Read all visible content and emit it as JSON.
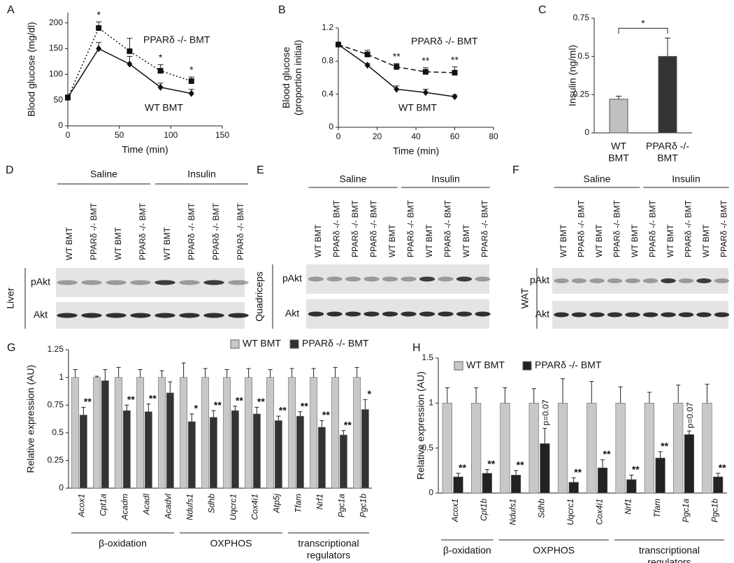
{
  "chart_data": [
    {
      "type": "line",
      "panel": "A",
      "x_label": "Time (min)",
      "y_label": [
        "Blood glucose (mg/dl)"
      ],
      "x": [
        0,
        30,
        60,
        90,
        120
      ],
      "xlim": [
        0,
        150
      ],
      "xticks": [
        0,
        50,
        100,
        150
      ],
      "ylim": [
        0,
        220
      ],
      "yticks": [
        0,
        50,
        100,
        150,
        200
      ],
      "series": [
        {
          "name": "WT BMT",
          "color": "#111111",
          "line_style": "solid",
          "marker": "diamond",
          "values": [
            55,
            150,
            120,
            75,
            63
          ],
          "errors": [
            5,
            12,
            15,
            8,
            8
          ]
        },
        {
          "name": "PPARδ -/- BMT",
          "color": "#111111",
          "line_style": "dotted",
          "marker": "square",
          "values": [
            55,
            190,
            145,
            107,
            87
          ],
          "errors": [
            5,
            12,
            25,
            12,
            8
          ]
        }
      ],
      "annotations": [
        null,
        "*",
        null,
        "*",
        "*"
      ]
    },
    {
      "type": "line",
      "panel": "B",
      "x_label": "Time (min)",
      "y_label": [
        "Blood glucose",
        "(proportion initial)"
      ],
      "x": [
        0,
        15,
        30,
        45,
        60
      ],
      "xlim": [
        0,
        80
      ],
      "xticks": [
        0,
        20,
        40,
        60,
        80
      ],
      "ylim": [
        0,
        1.2
      ],
      "yticks": [
        0,
        0.4,
        0.8,
        1.2
      ],
      "series": [
        {
          "name": "WT BMT",
          "color": "#111111",
          "line_style": "solid",
          "marker": "diamond",
          "values": [
            1,
            0.75,
            0.46,
            0.42,
            0.37
          ],
          "errors": [
            0.02,
            0.02,
            0.04,
            0.04,
            0.02
          ]
        },
        {
          "name": "PPARδ -/- BMT",
          "color": "#111111",
          "line_style": "dashed",
          "marker": "square",
          "values": [
            1,
            0.88,
            0.73,
            0.67,
            0.66
          ],
          "errors": [
            0.02,
            0.05,
            0.04,
            0.05,
            0.07
          ]
        }
      ],
      "annotations": [
        null,
        null,
        "**",
        "**",
        "**"
      ]
    },
    {
      "type": "bar",
      "panel": "C",
      "y_label": [
        "Insulin (ng/ml)"
      ],
      "categories": [
        [
          "WT",
          "BMT"
        ],
        [
          "PPARδ -/-",
          "BMT"
        ]
      ],
      "values": [
        0.22,
        0.5
      ],
      "errors": [
        0.02,
        0.12
      ],
      "colors": [
        "#c0c0c0",
        "#333333"
      ],
      "ylim": [
        0,
        0.75
      ],
      "yticks": [
        0,
        0.25,
        0.5,
        0.75
      ],
      "significance": "*"
    },
    {
      "type": "grouped_bar",
      "panel": "G",
      "y_label": [
        "Relative expression (AU)"
      ],
      "legend": "top",
      "categories": [
        "Acox1",
        "Cpt1a",
        "Acadm",
        "Acadl",
        "Acadvl",
        "Ndufs1",
        "Sdhb",
        "Uqcrc1",
        "Cox4i1",
        "Atp5j",
        "Tfam",
        "Nrf1",
        "Pgc1a",
        "Pgc1b"
      ],
      "ylim": [
        0,
        1.25
      ],
      "yticks": [
        0,
        0.25,
        0.5,
        0.75,
        1,
        1.25
      ],
      "series": [
        {
          "name": "WT BMT",
          "color": "#c8c8c8",
          "values": [
            1,
            1,
            1,
            1,
            1,
            1,
            1,
            1,
            1,
            1,
            1,
            1,
            1,
            1
          ],
          "errors": [
            0.07,
            0.01,
            0.09,
            0.07,
            0.06,
            0.13,
            0.08,
            0.07,
            0.08,
            0.07,
            0.08,
            0.08,
            0.09,
            0.09
          ]
        },
        {
          "name": "PPARδ -/- BMT",
          "color": "#333333",
          "values": [
            0.66,
            0.97,
            0.7,
            0.69,
            0.86,
            0.6,
            0.64,
            0.7,
            0.67,
            0.61,
            0.65,
            0.55,
            0.48,
            0.71
          ],
          "errors": [
            0.07,
            0.1,
            0.05,
            0.07,
            0.1,
            0.07,
            0.06,
            0.04,
            0.06,
            0.04,
            0.04,
            0.06,
            0.04,
            0.09
          ]
        }
      ],
      "annotations": [
        "**",
        null,
        "**",
        "**",
        null,
        "*",
        "**",
        "**",
        "**",
        "**",
        "**",
        "**",
        "**",
        "*"
      ],
      "groups": [
        {
          "label": [
            "β-oxidation"
          ],
          "size": 5
        },
        {
          "label": [
            "OXPHOS"
          ],
          "size": 5
        },
        {
          "label": [
            "transcriptional",
            "regulators"
          ],
          "size": 4
        }
      ]
    },
    {
      "type": "grouped_bar",
      "panel": "H",
      "y_label": [
        "Relative expression (AU)"
      ],
      "legend": "top",
      "categories": [
        "Acox1",
        "Cpt1b",
        "Ndufs1",
        "Sdhb",
        "Uqcrc1",
        "Cox4i1",
        "Nrf1",
        "Tfam",
        "Pgc1a",
        "Pgc1b"
      ],
      "ylim": [
        0,
        1.5
      ],
      "yticks": [
        0,
        0.5,
        1,
        1.5
      ],
      "series": [
        {
          "name": "WT BMT",
          "color": "#c8c8c8",
          "values": [
            1,
            1,
            1,
            1,
            1,
            1,
            1,
            1,
            1,
            1
          ],
          "errors": [
            0.17,
            0.17,
            0.17,
            0.16,
            0.27,
            0.24,
            0.18,
            0.12,
            0.2,
            0.21
          ]
        },
        {
          "name": "PPARδ -/- BMT",
          "color": "#222222",
          "values": [
            0.18,
            0.22,
            0.2,
            0.55,
            0.12,
            0.28,
            0.15,
            0.39,
            0.65,
            0.18
          ],
          "errors": [
            0.04,
            0.04,
            0.05,
            0.17,
            0.05,
            0.09,
            0.05,
            0.07,
            0.04,
            0.04
          ]
        }
      ],
      "annotations": [
        "**",
        "**",
        "**",
        "p=0.07",
        "**",
        "**",
        "**",
        "**",
        "p=0.07",
        "**"
      ],
      "groups": [
        {
          "label": [
            "β-oxidation"
          ],
          "size": 2
        },
        {
          "label": [
            "OXPHOS"
          ],
          "size": 4
        },
        {
          "label": [
            "transcriptional",
            "regulators"
          ],
          "size": 4
        }
      ]
    }
  ],
  "blots": [
    {
      "panel": "D",
      "tissue": "Liver",
      "groups": [
        "Saline",
        "Insulin"
      ],
      "rows": [
        "pAkt",
        "Akt"
      ],
      "lanes": [
        "WT BMT",
        "PPARδ -/- BMT",
        "WT BMT",
        "PPARδ -/- BMT",
        "WT BMT",
        "PPARδ -/- BMT",
        "PPARδ -/- BMT",
        "PPARδ -/- BMT"
      ]
    },
    {
      "panel": "E",
      "tissue": "Quadriceps",
      "groups": [
        "Saline",
        "Insulin"
      ],
      "rows": [
        "pAkt",
        "Akt"
      ],
      "lanes": [
        "WT BMT",
        "PPARδ -/- BMT",
        "PPARδ -/- BMT",
        "PPARδ -/- BMT",
        "WT BMT",
        "PPARδ -/- BMT",
        "WT BMT",
        "PPARδ -/- BMT",
        "WT BMT",
        "PPARδ -/- BMT"
      ]
    },
    {
      "panel": "F",
      "tissue": "WAT",
      "groups": [
        "Saline",
        "Insulin"
      ],
      "rows": [
        "pAkt",
        "Akt"
      ],
      "lanes": [
        "WT BMT",
        "PPARδ -/- BMT",
        "WT BMT",
        "PPARδ -/- BMT",
        "WT BMT",
        "PPARδ -/- BMT",
        "WT BMT",
        "PPARδ -/- BMT",
        "WT BMT",
        "PPARδ -/- BMT"
      ]
    }
  ]
}
